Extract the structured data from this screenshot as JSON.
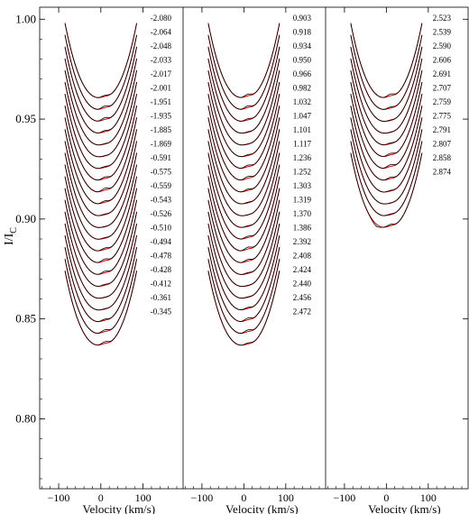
{
  "chart_data": {
    "type": "line",
    "ylabel": "I/I",
    "ylabel_sub": "C",
    "xlabel": "Velocity (km/s)",
    "ylim": [
      0.765,
      1.006
    ],
    "xlim": [
      -145,
      195
    ],
    "yticks": [
      0.8,
      0.85,
      0.9,
      0.95,
      1.0
    ],
    "ytick_labels": [
      "0.80",
      "0.85",
      "0.90",
      "0.95",
      "1.00"
    ],
    "xticks": [
      -100,
      0,
      100
    ],
    "xtick_labels": [
      "−100",
      "0",
      "100"
    ],
    "profile_velocity_range": [
      -85,
      85
    ],
    "line_colors": {
      "observed": "#000000",
      "model": "#cc0000"
    },
    "panels": [
      {
        "phases": [
          "-2.080",
          "-2.064",
          "-2.048",
          "-2.033",
          "-2.017",
          "-2.001",
          "-1.951",
          "-1.935",
          "-1.885",
          "-1.869",
          "-0.591",
          "-0.575",
          "-0.559",
          "-0.543",
          "-0.526",
          "-0.510",
          "-0.494",
          "-0.478",
          "-0.428",
          "-0.412",
          "-0.361",
          "-0.345"
        ],
        "continuum_levels": [
          0.998,
          0.9921,
          0.9862,
          0.9803,
          0.9744,
          0.9685,
          0.9626,
          0.9567,
          0.9508,
          0.9449,
          0.939,
          0.9331,
          0.9272,
          0.9213,
          0.9154,
          0.9095,
          0.9036,
          0.8977,
          0.8918,
          0.8859,
          0.88,
          0.8741
        ],
        "minimum_levels": [
          0.9605,
          0.9546,
          0.9487,
          0.9428,
          0.9369,
          0.931,
          0.9251,
          0.9192,
          0.9133,
          0.9074,
          0.9015,
          0.8956,
          0.8897,
          0.8838,
          0.8779,
          0.872,
          0.8661,
          0.8602,
          0.8543,
          0.8484,
          0.8425,
          0.8366
        ]
      },
      {
        "phases": [
          "0.903",
          "0.918",
          "0.934",
          "0.950",
          "0.966",
          "0.982",
          "1.032",
          "1.047",
          "1.101",
          "1.117",
          "1.236",
          "1.252",
          "1.303",
          "1.319",
          "1.370",
          "1.386",
          "2.392",
          "2.408",
          "2.424",
          "2.440",
          "2.456",
          "2.472"
        ],
        "continuum_levels": [
          0.998,
          0.9921,
          0.9862,
          0.9803,
          0.9744,
          0.9685,
          0.9626,
          0.9567,
          0.9508,
          0.9449,
          0.939,
          0.9331,
          0.9272,
          0.9213,
          0.9154,
          0.9095,
          0.9036,
          0.8977,
          0.8918,
          0.8859,
          0.88,
          0.8741
        ],
        "minimum_levels": [
          0.9605,
          0.9546,
          0.9487,
          0.9428,
          0.9369,
          0.931,
          0.9251,
          0.9192,
          0.9133,
          0.9074,
          0.9015,
          0.8956,
          0.8897,
          0.8838,
          0.8779,
          0.872,
          0.8661,
          0.8602,
          0.8543,
          0.8484,
          0.8425,
          0.8366
        ]
      },
      {
        "phases": [
          "2.523",
          "2.539",
          "2.590",
          "2.606",
          "2.691",
          "2.707",
          "2.759",
          "2.775",
          "2.791",
          "2.807",
          "2.858",
          "2.874"
        ],
        "continuum_levels": [
          0.998,
          0.9921,
          0.9862,
          0.9803,
          0.9744,
          0.9685,
          0.9626,
          0.9567,
          0.9508,
          0.9449,
          0.939,
          0.9331
        ],
        "minimum_levels": [
          0.9605,
          0.9546,
          0.9487,
          0.9428,
          0.9369,
          0.931,
          0.9251,
          0.9192,
          0.9133,
          0.9074,
          0.9015,
          0.8956
        ]
      }
    ]
  }
}
